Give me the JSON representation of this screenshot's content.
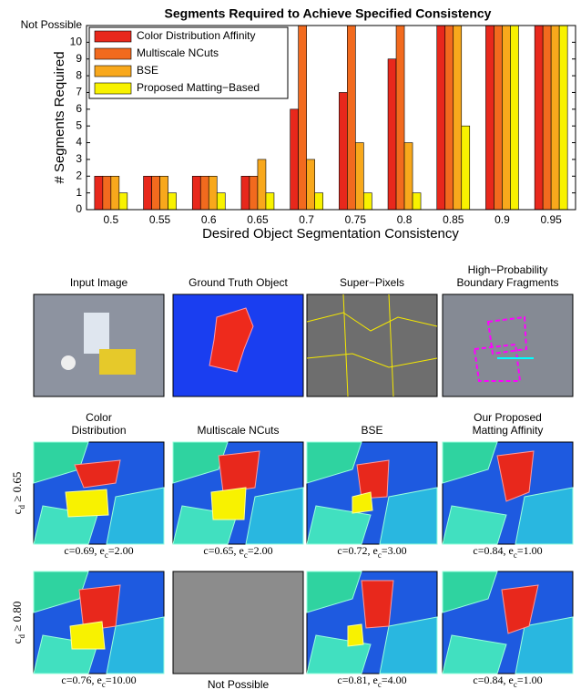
{
  "chart_data": {
    "type": "bar",
    "title": "Segments Required to Achieve Specified Consistency",
    "x_label": "Desired Object Segmentation Consistency",
    "y_label": "# Segments Required",
    "categories": [
      "0.5",
      "0.55",
      "0.6",
      "0.65",
      "0.7",
      "0.75",
      "0.8",
      "0.85",
      "0.9",
      "0.95"
    ],
    "series": [
      {
        "name": "Color Distribution Affinity",
        "color": "#e8281c",
        "values": [
          2,
          2,
          2,
          2,
          6,
          7,
          9,
          11,
          11,
          11
        ]
      },
      {
        "name": "Multiscale NCuts",
        "color": "#f26a1e",
        "values": [
          2,
          2,
          2,
          2,
          11,
          11,
          11,
          11,
          11,
          11
        ]
      },
      {
        "name": "BSE",
        "color": "#f8a81c",
        "values": [
          2,
          2,
          2,
          3,
          3,
          4,
          4,
          11,
          11,
          11
        ]
      },
      {
        "name": "Proposed Matting−Based",
        "color": "#f8f200",
        "values": [
          1,
          1,
          1,
          1,
          1,
          1,
          1,
          5,
          11,
          11
        ]
      }
    ],
    "ylim": [
      0,
      11
    ],
    "yticks": [
      0,
      1,
      2,
      3,
      4,
      5,
      6,
      7,
      8,
      9,
      10,
      {
        "value": 11,
        "label": "Not Possible"
      }
    ],
    "legend": "upper-left"
  },
  "panels": {
    "row1_titles": [
      [
        "Input Image"
      ],
      [
        "Ground Truth Object"
      ],
      [
        "Super−Pixels"
      ],
      [
        "High−Probability",
        "Boundary Fragments"
      ]
    ],
    "row2_titles": [
      [
        "Color",
        "Distribution"
      ],
      [
        "Multiscale NCuts"
      ],
      [
        "BSE"
      ],
      [
        "Our Proposed",
        "Matting Affinity"
      ]
    ],
    "row_labels": [
      {
        "main": "c",
        "sub": "d",
        "rest": " ≥ 0.65"
      },
      {
        "main": "c",
        "sub": "d",
        "rest": " ≥ 0.80"
      }
    ],
    "captions": [
      [
        {
          "main": "c=0.69, e",
          "sub": "c",
          "rest": "=2.00"
        },
        {
          "main": "c=0.65, e",
          "sub": "c",
          "rest": "=2.00"
        },
        {
          "main": "c=0.72, e",
          "sub": "c",
          "rest": "=3.00"
        },
        {
          "main": "c=0.84, e",
          "sub": "c",
          "rest": "=1.00"
        }
      ],
      [
        {
          "main": "c=0.76, e",
          "sub": "c",
          "rest": "=10.00"
        },
        {
          "main": "Not Possible"
        },
        {
          "main": "c=0.81, e",
          "sub": "c",
          "rest": "=4.00"
        },
        {
          "main": "c=0.84, e",
          "sub": "c",
          "rest": "=1.00"
        }
      ]
    ]
  }
}
